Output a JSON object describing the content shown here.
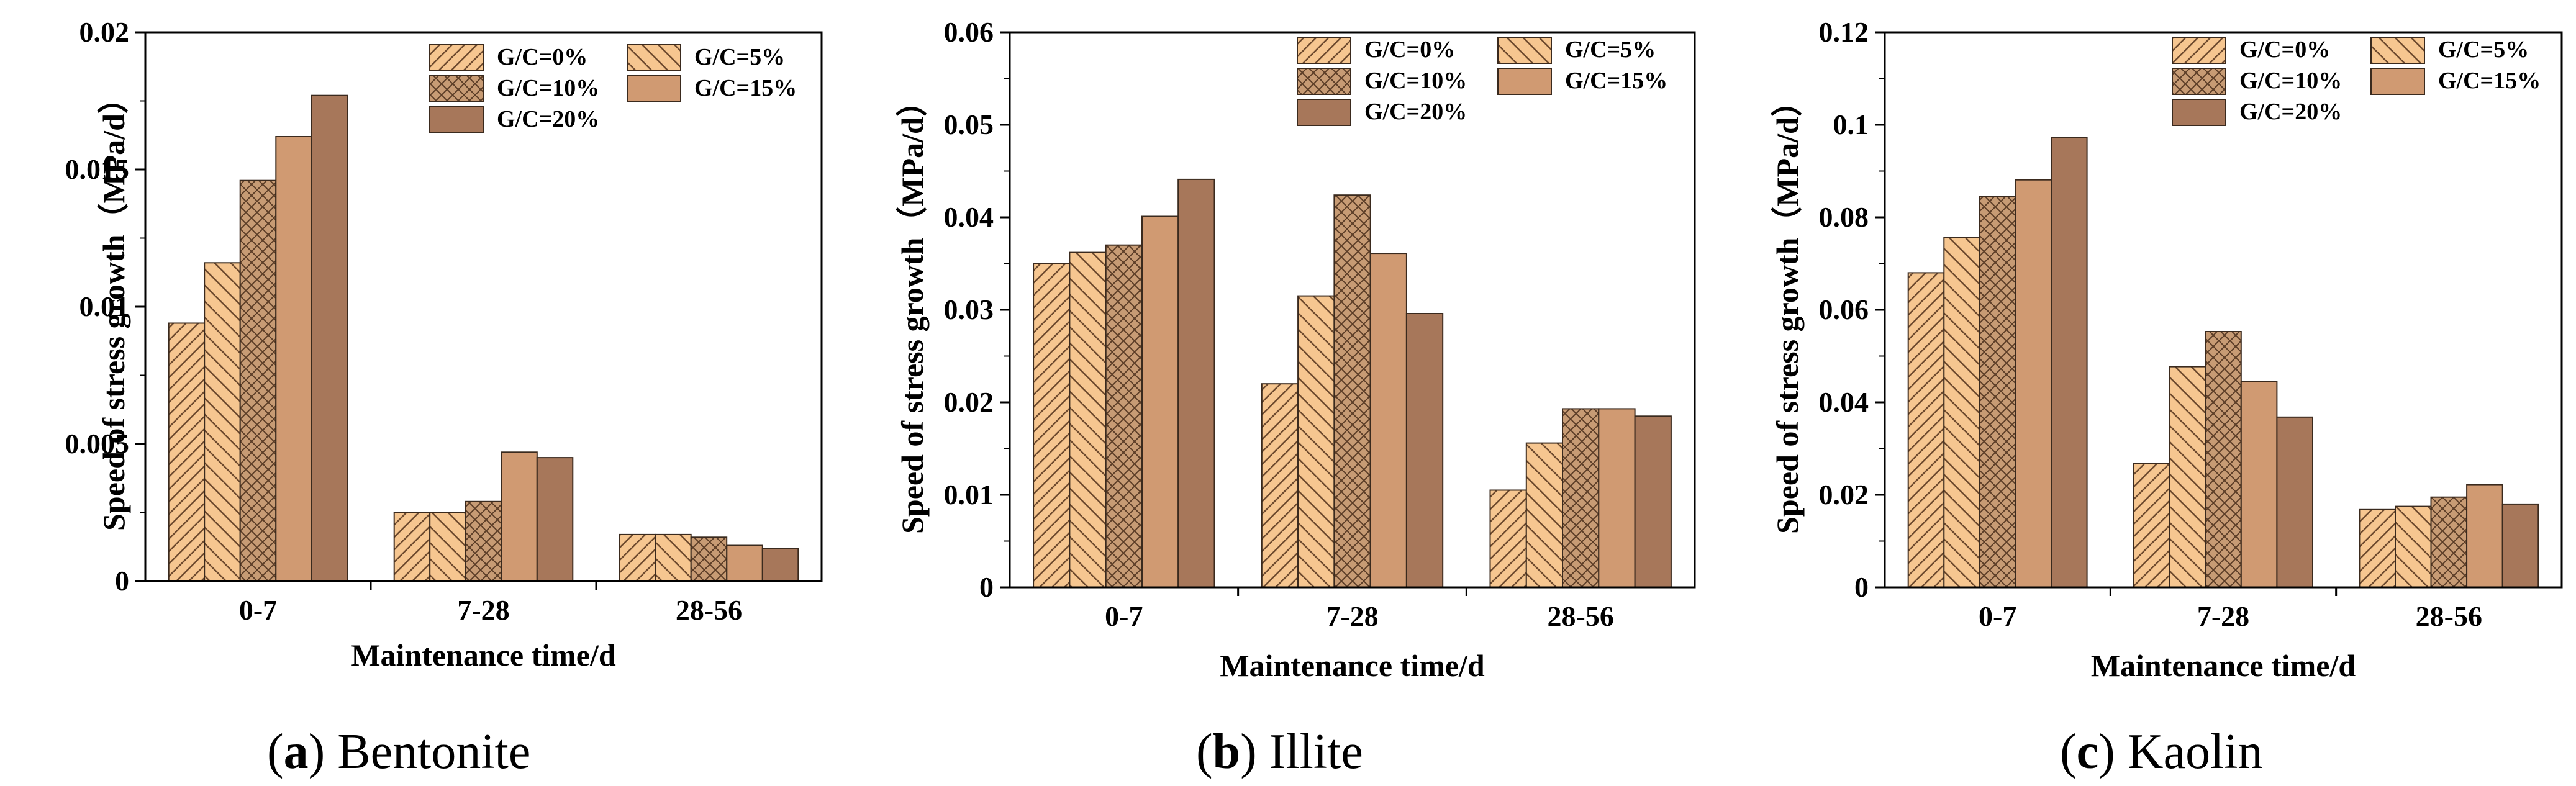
{
  "colors": {
    "bar_light": "#f6c690",
    "bar_mid": "#e9b07f",
    "bar_dark": "#a87a58",
    "bar_15": "#d09a72",
    "bar_20": "#a7775a",
    "hatch": "#6e4a2e",
    "border": "#3a2a1e",
    "axis": "#000000"
  },
  "chart_data": [
    {
      "type": "bar",
      "caption": {
        "letter": "a",
        "material": "Bentonite"
      },
      "categories": [
        "0-7",
        "7-28",
        "28-56"
      ],
      "series": [
        {
          "name": "G/C=0%",
          "values": [
            0.0094,
            0.0025,
            0.0017
          ]
        },
        {
          "name": "G/C=5%",
          "values": [
            0.0116,
            0.0025,
            0.0017
          ]
        },
        {
          "name": "G/C=10%",
          "values": [
            0.0146,
            0.0029,
            0.0016
          ]
        },
        {
          "name": "G/C=15%",
          "values": [
            0.0162,
            0.0047,
            0.0013
          ]
        },
        {
          "name": "G/C=20%",
          "values": [
            0.0177,
            0.0045,
            0.0012
          ]
        }
      ],
      "yticks": [
        "0",
        "0.005",
        "0.01",
        "0.015",
        "0.02"
      ],
      "ylim": [
        0,
        0.02
      ],
      "xlabel": "Maintenance time/d",
      "ylabel": "Speed of stress growth（MPa/d）"
    },
    {
      "type": "bar",
      "caption": {
        "letter": "b",
        "material": "Illite"
      },
      "categories": [
        "0-7",
        "7-28",
        "28-56"
      ],
      "series": [
        {
          "name": "G/C=0%",
          "values": [
            0.035,
            0.022,
            0.0105
          ]
        },
        {
          "name": "G/C=5%",
          "values": [
            0.0362,
            0.0315,
            0.0156
          ]
        },
        {
          "name": "G/C=10%",
          "values": [
            0.037,
            0.0424,
            0.0193
          ]
        },
        {
          "name": "G/C=15%",
          "values": [
            0.0401,
            0.0361,
            0.0193
          ]
        },
        {
          "name": "G/C=20%",
          "values": [
            0.0441,
            0.0296,
            0.0185
          ]
        }
      ],
      "yticks": [
        "0",
        "0.01",
        "0.02",
        "0.03",
        "0.04",
        "0.05",
        "0.06"
      ],
      "ylim": [
        0,
        0.06
      ],
      "xlabel": "Maintenance time/d",
      "ylabel": "Speed of stress growth（MPa/d）"
    },
    {
      "type": "bar",
      "caption": {
        "letter": "c",
        "material": "Kaolin"
      },
      "categories": [
        "0-7",
        "7-28",
        "28-56"
      ],
      "series": [
        {
          "name": "G/C=0%",
          "values": [
            0.068,
            0.0268,
            0.0168
          ]
        },
        {
          "name": "G/C=5%",
          "values": [
            0.0757,
            0.0477,
            0.0175
          ]
        },
        {
          "name": "G/C=10%",
          "values": [
            0.0845,
            0.0553,
            0.0195
          ]
        },
        {
          "name": "G/C=15%",
          "values": [
            0.0881,
            0.0445,
            0.0222
          ]
        },
        {
          "name": "G/C=20%",
          "values": [
            0.0972,
            0.0368,
            0.018
          ]
        }
      ],
      "yticks": [
        "0",
        "0.02",
        "0.04",
        "0.06",
        "0.08",
        "0.1",
        "0.12"
      ],
      "ylim": [
        0,
        0.12
      ],
      "xlabel": "Maintenance time/d",
      "ylabel": "Speed of stress growth（MPa/d）"
    }
  ]
}
